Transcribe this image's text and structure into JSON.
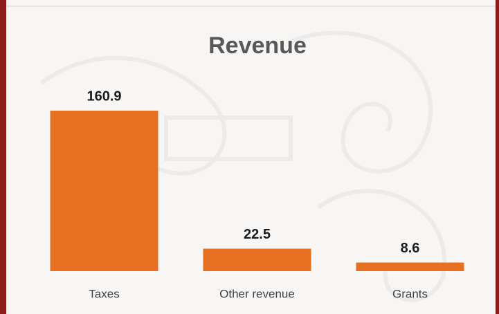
{
  "chart_data": {
    "type": "bar",
    "title": "Revenue",
    "categories": [
      "Taxes",
      "Other revenue",
      "Grants"
    ],
    "values": [
      160.9,
      22.5,
      8.6
    ],
    "color": "#e5701f"
  }
}
